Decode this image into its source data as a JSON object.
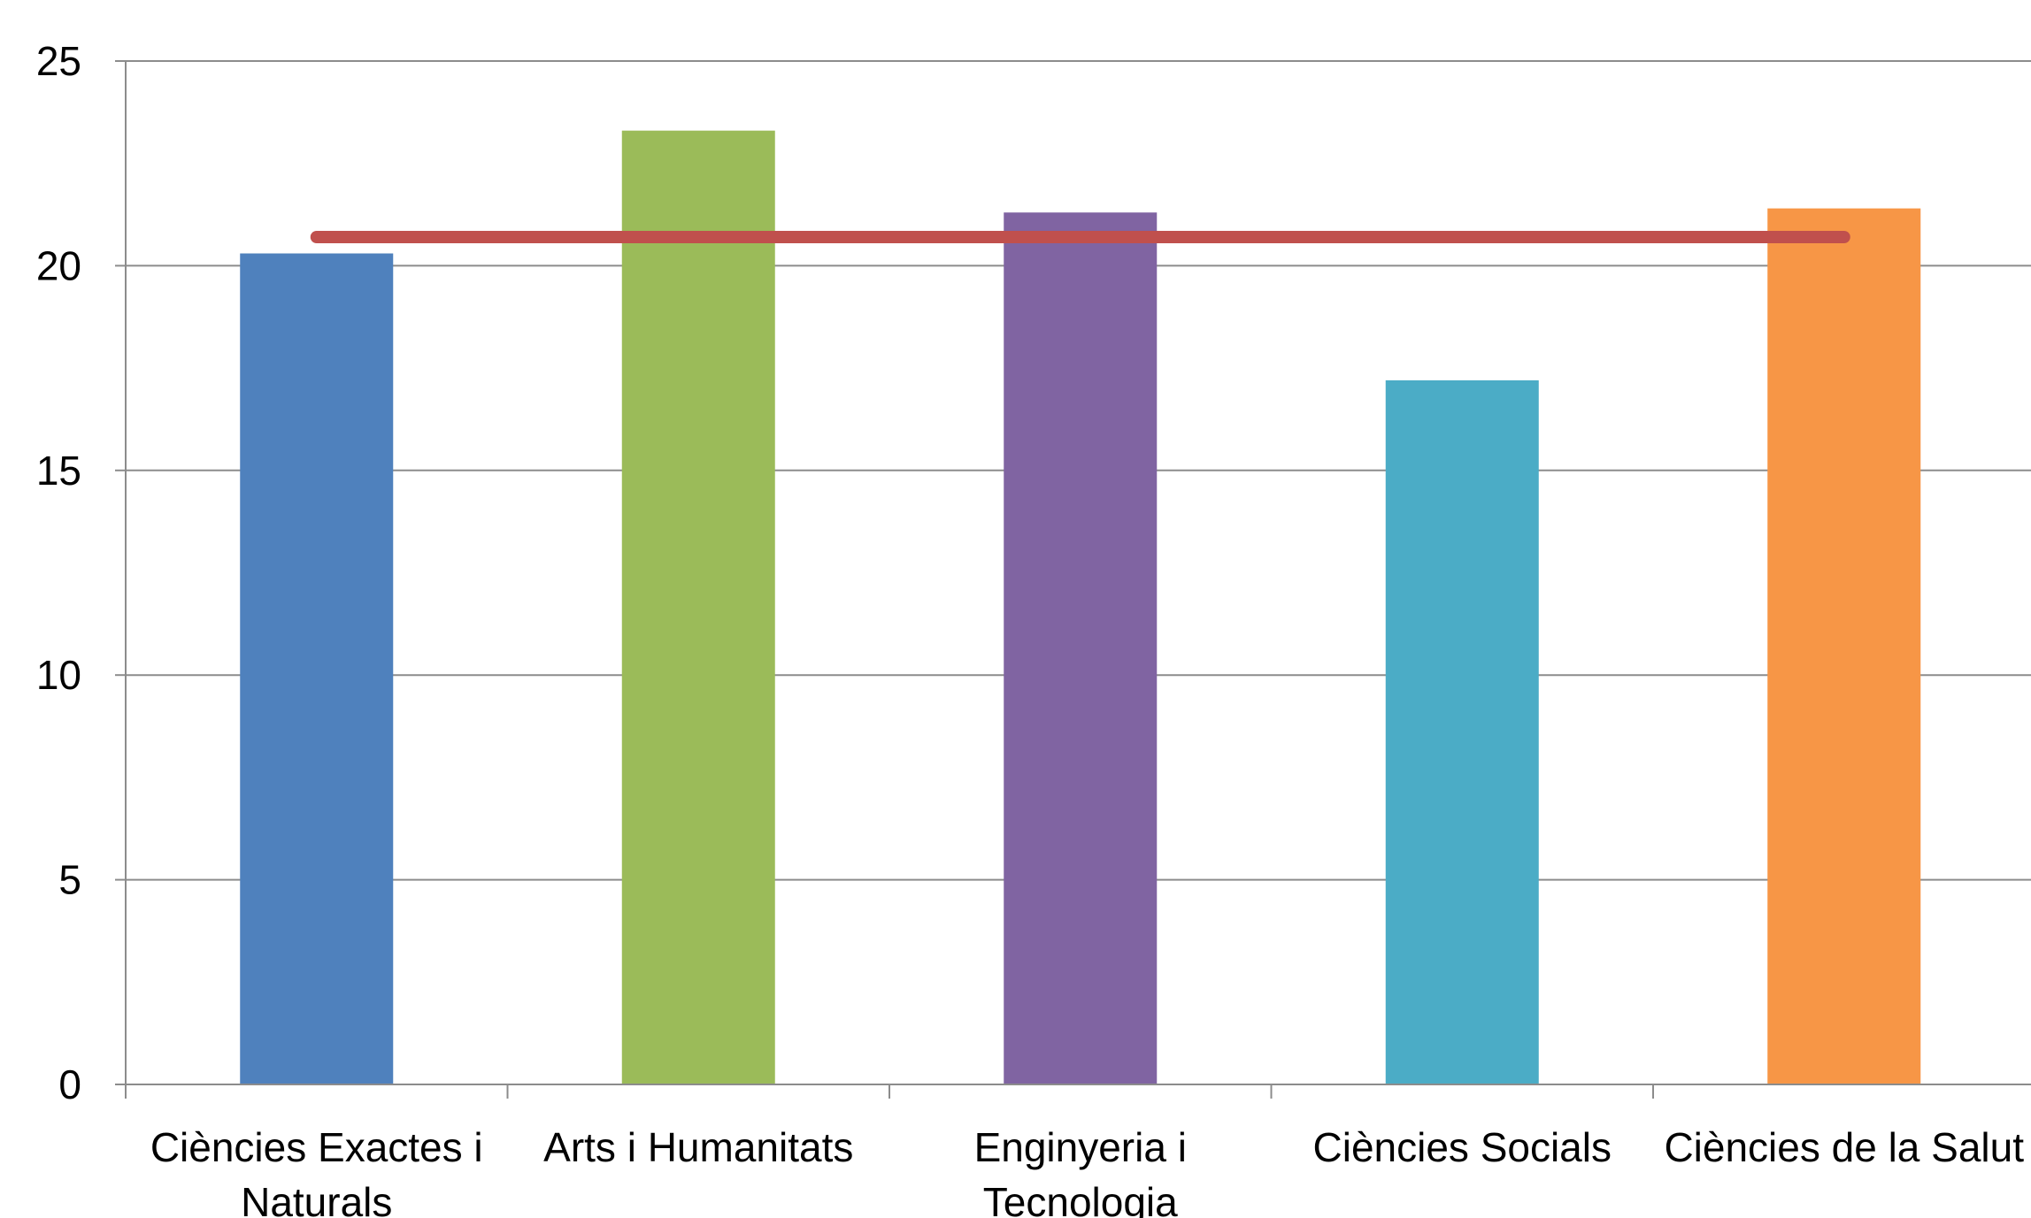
{
  "chart_data": {
    "type": "bar",
    "categories": [
      [
        "Ciències Exactes i",
        "Naturals"
      ],
      [
        "Arts i Humanitats"
      ],
      [
        "Enginyeria i",
        "Tecnologia"
      ],
      [
        "Ciències Socials"
      ],
      [
        "Ciències de la Salut"
      ]
    ],
    "values": [
      20.3,
      23.3,
      21.3,
      17.2,
      21.4
    ],
    "bar_colors": [
      "#4f81bd",
      "#9bbb59",
      "#8064a2",
      "#4bacc6",
      "#f79646"
    ],
    "reference_line": {
      "value": 20.7,
      "color": "#c0504d"
    },
    "ylim": [
      0,
      25
    ],
    "yticks": [
      0,
      5,
      10,
      15,
      20,
      25
    ],
    "grid": true,
    "title": "",
    "xlabel": "",
    "ylabel": ""
  }
}
